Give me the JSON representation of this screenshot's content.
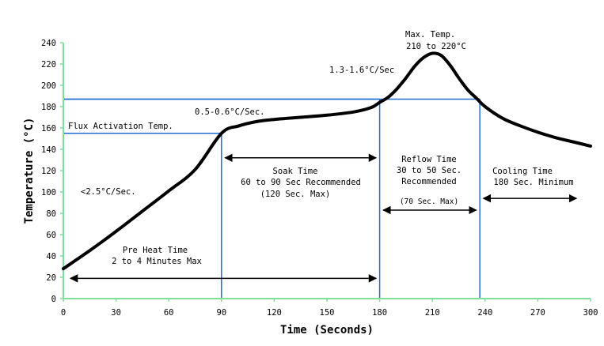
{
  "chart_data": {
    "type": "line",
    "xlabel": "Time (Seconds)",
    "ylabel": "Temperature (°C)",
    "xlim": [
      0,
      300
    ],
    "ylim": [
      0,
      240
    ],
    "x_ticks": [
      "0",
      "30",
      "60",
      "90",
      "120",
      "150",
      "180",
      "210",
      "240",
      "270",
      "300"
    ],
    "y_ticks": [
      "0",
      "20",
      "40",
      "60",
      "80",
      "100",
      "120",
      "140",
      "160",
      "180",
      "200",
      "220",
      "240"
    ],
    "grid": false,
    "colors": {
      "curve": "#000000",
      "guides": "#1f6fd6",
      "axes": "#7fe09a"
    },
    "series": [
      {
        "x": [
          0,
          15,
          30,
          45,
          60,
          75,
          90,
          100,
          110,
          120,
          135,
          150,
          165,
          175,
          180,
          185,
          190,
          195,
          200,
          205,
          210,
          215,
          220,
          225,
          230,
          235,
          240,
          250,
          260,
          270,
          280,
          290,
          300
        ],
        "y": [
          28,
          45,
          63,
          82,
          101,
          121,
          155,
          162,
          166,
          168,
          170,
          172,
          175,
          179,
          184,
          189,
          197,
          207,
          218,
          226,
          230,
          228,
          219,
          207,
          196,
          188,
          180,
          169,
          162,
          156,
          151,
          147,
          143
        ]
      }
    ],
    "guide_lines": [
      {
        "x": 90,
        "y": 155
      },
      {
        "x": 180,
        "y": 187
      },
      {
        "x": 237,
        "y": 187
      }
    ],
    "annotations": {
      "flux_activation": "Flux Activation Temp.",
      "ramp1": "<2.5°C/Sec.",
      "ramp2": "0.5-0.6°C/Sec.",
      "ramp3": "1.3-1.6°C/Sec",
      "max_temp_1": "Max. Temp.",
      "max_temp_2": "210 to 220°C",
      "soak_1": "Soak Time",
      "soak_2": "60 to 90 Sec Recommended",
      "soak_3": "(120 Sec. Max)",
      "reflow_1": "Reflow Time",
      "reflow_2": "30 to 50 Sec.",
      "reflow_3": "Recommended",
      "reflow_4": "(70 Sec. Max)",
      "cooling_1": "Cooling Time",
      "cooling_2": "180 Sec. Minimum",
      "preheat_1": "Pre Heat Time",
      "preheat_2": "2 to 4 Minutes Max"
    },
    "arrows": [
      {
        "from": 4,
        "to": 178,
        "y": 19,
        "name": "preheat"
      },
      {
        "from": 92,
        "to": 178,
        "y": 132,
        "name": "soak"
      },
      {
        "from": 182,
        "to": 235,
        "y": 83,
        "name": "reflow"
      },
      {
        "from": 239,
        "to": 292,
        "y": 94,
        "name": "cooling"
      }
    ]
  }
}
